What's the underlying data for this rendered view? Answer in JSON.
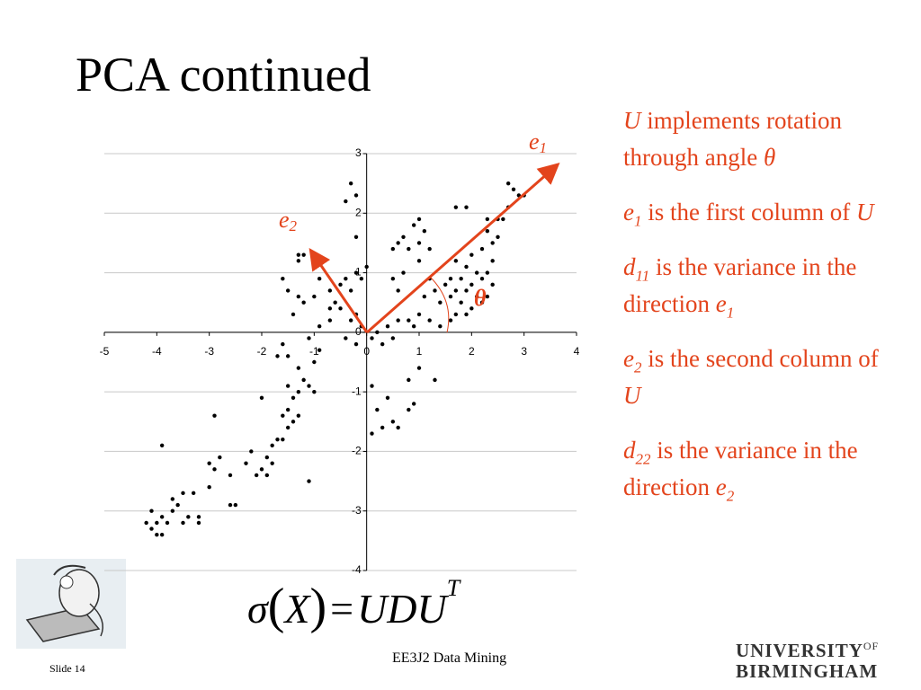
{
  "slide": {
    "title": "PCA continued",
    "bullets": [
      [
        "U",
        " implements rotation through angle ",
        "θ"
      ],
      [
        "e",
        "1",
        " is the first column of ",
        "U"
      ],
      [
        "d",
        "11",
        " is the variance in the direction ",
        "e",
        "1"
      ],
      [
        "e",
        "2",
        " is the second column of ",
        "U"
      ],
      [
        "d",
        "22",
        " is the variance in the direction ",
        "e",
        "2"
      ]
    ],
    "formula": [
      "σ",
      "(",
      "X",
      ")",
      "=",
      "UDU",
      "T"
    ],
    "footer": {
      "slide_number": "Slide 14",
      "course": "EE3J2 Data Mining",
      "logo": [
        "UNIVERSITY",
        "OF",
        "BIRMINGHAM"
      ]
    }
  },
  "chart_data": {
    "type": "scatter",
    "color": "#000000",
    "grid": true,
    "annotations": [
      [
        "e",
        "1"
      ],
      [
        "e",
        "2"
      ],
      [
        "θ"
      ]
    ],
    "xlim": [
      -5,
      4
    ],
    "xticks": [
      -5,
      -4,
      -3,
      -2,
      -1,
      0,
      1,
      2,
      3,
      4
    ],
    "ylim": [
      -4,
      3
    ],
    "yticks": [
      -4,
      -3,
      -2,
      -1,
      0,
      1,
      2,
      3
    ],
    "x": [
      -4.1,
      -4.0,
      -4.1,
      -3.9,
      -4.2,
      -4.0,
      -3.9,
      -3.8,
      -3.7,
      -3.5,
      -3.4,
      -3.2,
      -3.2,
      -3.6,
      -3.7,
      -3.5,
      -3.9,
      -3.3,
      -3.0,
      -2.9,
      -2.8,
      -2.6,
      -2.5,
      -2.6,
      -3.0,
      -2.3,
      -2.2,
      -2.1,
      -2.0,
      -1.9,
      -1.8,
      -1.9,
      -1.8,
      -1.7,
      -1.6,
      -1.5,
      -1.6,
      -1.5,
      -1.4,
      -1.3,
      -1.4,
      -1.3,
      -1.5,
      -1.2,
      -1.1,
      -1.0,
      -1.1,
      -2.9,
      -2.0,
      -1.7,
      -1.6,
      -1.5,
      -1.3,
      -1.0,
      -0.9,
      -1.1,
      -0.9,
      -0.7,
      -1.6,
      -1.5,
      -1.3,
      -1.3,
      -1.3,
      -1.2,
      -1.4,
      -1.2,
      -1.0,
      -0.9,
      -0.7,
      -0.6,
      -0.5,
      -0.4,
      -0.3,
      -0.2,
      -0.1,
      0.0,
      -0.2,
      -0.4,
      -0.3,
      -0.2,
      -0.7,
      -0.5,
      -0.3,
      -0.2,
      -0.4,
      -0.2,
      -0.1,
      0.1,
      0.2,
      0.3,
      0.4,
      0.5,
      0.6,
      0.1,
      0.2,
      0.3,
      0.1,
      0.4,
      0.5,
      0.6,
      0.8,
      0.9,
      0.8,
      1.0,
      1.3,
      0.6,
      0.5,
      0.7,
      0.5,
      0.6,
      0.8,
      0.9,
      1.0,
      1.0,
      1.2,
      1.1,
      1.0,
      0.7,
      0.8,
      1.0,
      1.1,
      1.2,
      1.3,
      1.4,
      1.5,
      1.6,
      1.7,
      1.8,
      1.9,
      2.0,
      2.1,
      2.2,
      2.3,
      2.4,
      1.8,
      1.6,
      1.4,
      1.2,
      0.9,
      1.7,
      1.9,
      2.0,
      2.1,
      2.2,
      2.3,
      2.4,
      2.5,
      2.6,
      2.7,
      2.8,
      2.7,
      2.9,
      3.0,
      1.7,
      1.9,
      2.3,
      2.5,
      2.2,
      2.0,
      1.9,
      2.4,
      2.3,
      1.6,
      1.7
    ],
    "values": [
      -3.3,
      -3.4,
      -3.0,
      -3.1,
      -3.2,
      -3.2,
      -3.4,
      -3.2,
      -3.0,
      -3.2,
      -3.1,
      -3.1,
      -3.2,
      -2.9,
      -2.8,
      -2.7,
      -1.9,
      -2.7,
      -2.6,
      -2.3,
      -2.1,
      -2.9,
      -2.9,
      -2.4,
      -2.2,
      -2.2,
      -2.0,
      -2.4,
      -2.3,
      -2.4,
      -2.2,
      -2.1,
      -1.9,
      -1.8,
      -1.8,
      -1.6,
      -1.4,
      -1.3,
      -1.5,
      -1.4,
      -1.1,
      -1.0,
      -0.9,
      -0.8,
      -0.9,
      -1.0,
      -2.5,
      -1.4,
      -1.1,
      -0.4,
      -0.2,
      -0.4,
      -0.6,
      -0.5,
      -0.3,
      -0.1,
      0.1,
      0.2,
      0.9,
      0.7,
      0.6,
      1.3,
      1.2,
      1.3,
      0.3,
      0.5,
      0.6,
      0.9,
      0.7,
      0.5,
      0.8,
      0.9,
      0.7,
      1.0,
      0.9,
      1.1,
      1.6,
      2.2,
      2.5,
      2.3,
      0.4,
      0.4,
      0.2,
      0.3,
      -0.1,
      -0.2,
      0.1,
      -0.1,
      0,
      -0.2,
      0.1,
      -0.1,
      0.2,
      -0.9,
      -1.3,
      -1.6,
      -1.7,
      -1.1,
      -1.5,
      -1.6,
      -1.3,
      -1.2,
      -0.8,
      -0.6,
      -0.8,
      0.7,
      0.9,
      1.0,
      1.4,
      1.5,
      1.4,
      1.8,
      1.5,
      1.2,
      1.4,
      1.7,
      1.9,
      1.6,
      0.2,
      0.3,
      0.6,
      0.9,
      0.7,
      0.5,
      0.8,
      0.6,
      0.3,
      0.5,
      0.7,
      0.8,
      0.6,
      0.9,
      1.0,
      1.2,
      0.9,
      0.2,
      0.1,
      0.2,
      0.1,
      1.2,
      1.1,
      1.3,
      1.0,
      1.4,
      1.7,
      1.5,
      1.9,
      1.9,
      2.1,
      2.4,
      2.5,
      2.3,
      2.3,
      2.1,
      2.1,
      1.9,
      1.6,
      0.5,
      0.4,
      0.3,
      0.8,
      0.6,
      0.9,
      0.7
    ]
  }
}
